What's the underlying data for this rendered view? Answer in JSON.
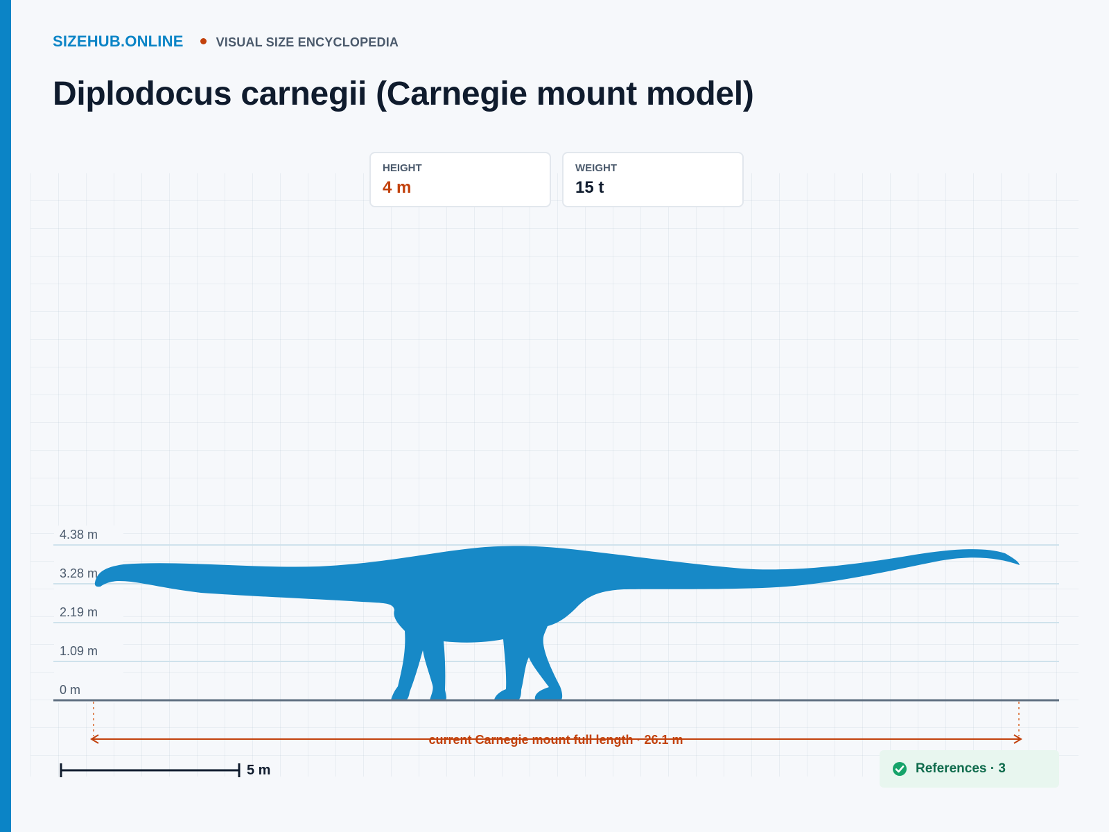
{
  "header": {
    "brand": "SIZEHUB.ONLINE",
    "tagline": "VISUAL SIZE ENCYCLOPEDIA"
  },
  "page_title": "Diplodocus carnegii (Carnegie mount model)",
  "stats": {
    "height": {
      "label": "HEIGHT",
      "value": "4 m"
    },
    "weight": {
      "label": "WEIGHT",
      "value": "15 t"
    }
  },
  "chart": {
    "y_ticks": [
      "4.38 m",
      "3.28 m",
      "2.19 m",
      "1.09 m",
      "0 m"
    ],
    "length_annotation": "current Carnegie mount full length · 26.1 m",
    "scale_bar_label": "5 m"
  },
  "references": {
    "label": "References · 3",
    "icon": "check-circle-icon"
  },
  "colors": {
    "accent": "#0b84c6",
    "highlight": "#c2410c",
    "silhouette": "#1789c7",
    "refs_bg": "#e8f6ef",
    "refs_text": "#0f6b4c"
  }
}
